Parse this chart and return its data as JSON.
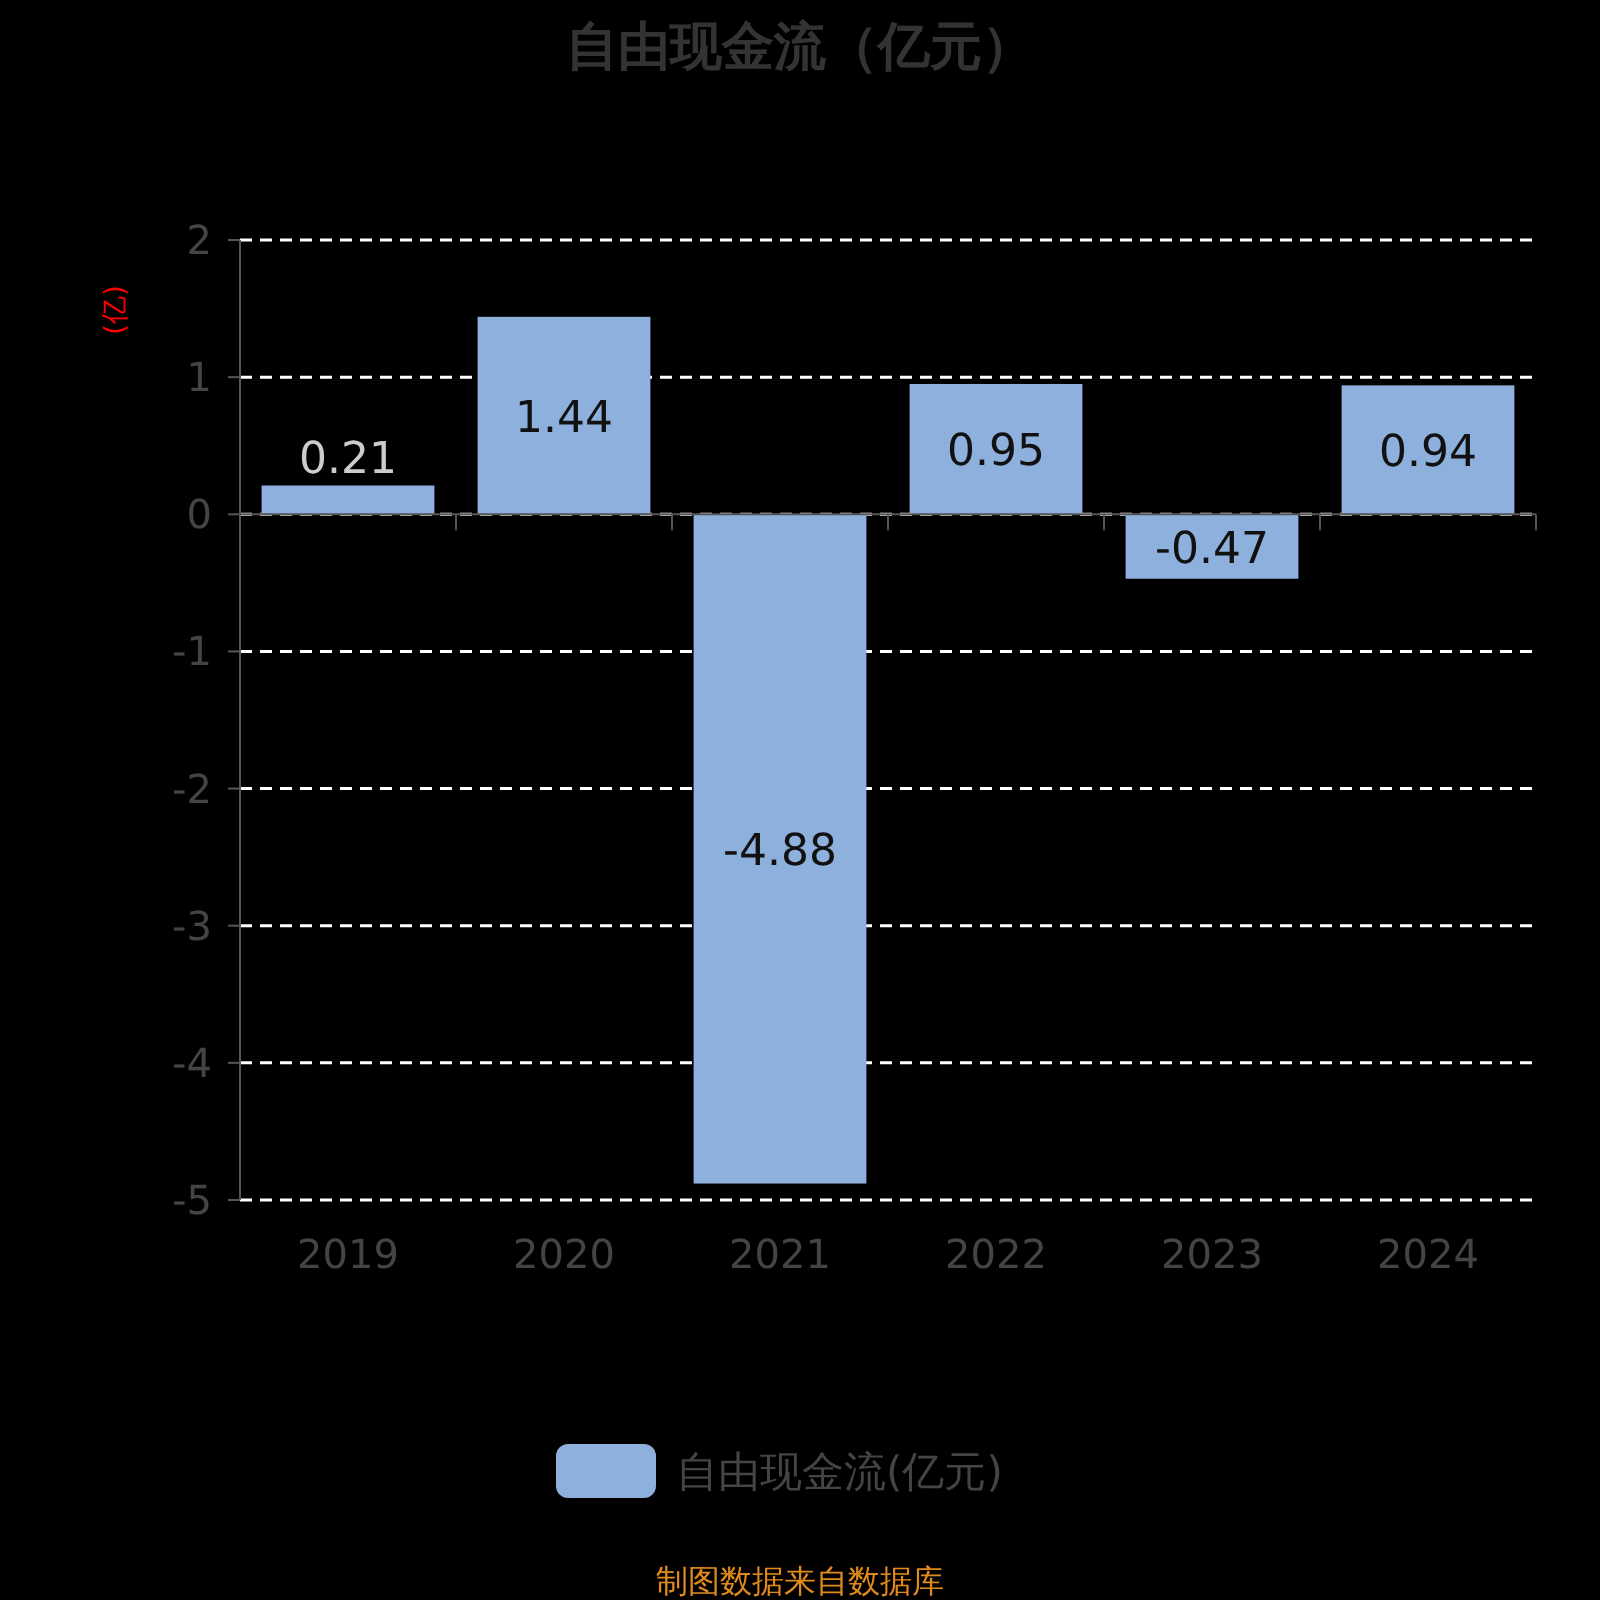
{
  "chart_data": {
    "type": "bar",
    "title": "自由现金流（亿元）",
    "ylabel": "(亿)",
    "categories": [
      "2019",
      "2020",
      "2021",
      "2022",
      "2023",
      "2024"
    ],
    "series": [
      {
        "name": "自由现金流(亿元)",
        "color": "#8eb0dc",
        "values": [
          0.21,
          1.44,
          -4.88,
          0.95,
          -0.47,
          0.94
        ]
      }
    ],
    "ylim": [
      -5,
      2
    ],
    "yticks": [
      -5,
      -4,
      -3,
      -2,
      -1,
      0,
      1,
      2
    ],
    "grid": "y",
    "legend": "bottom",
    "data_labels": true,
    "annotations": [
      "制图数据来自数据库"
    ]
  }
}
